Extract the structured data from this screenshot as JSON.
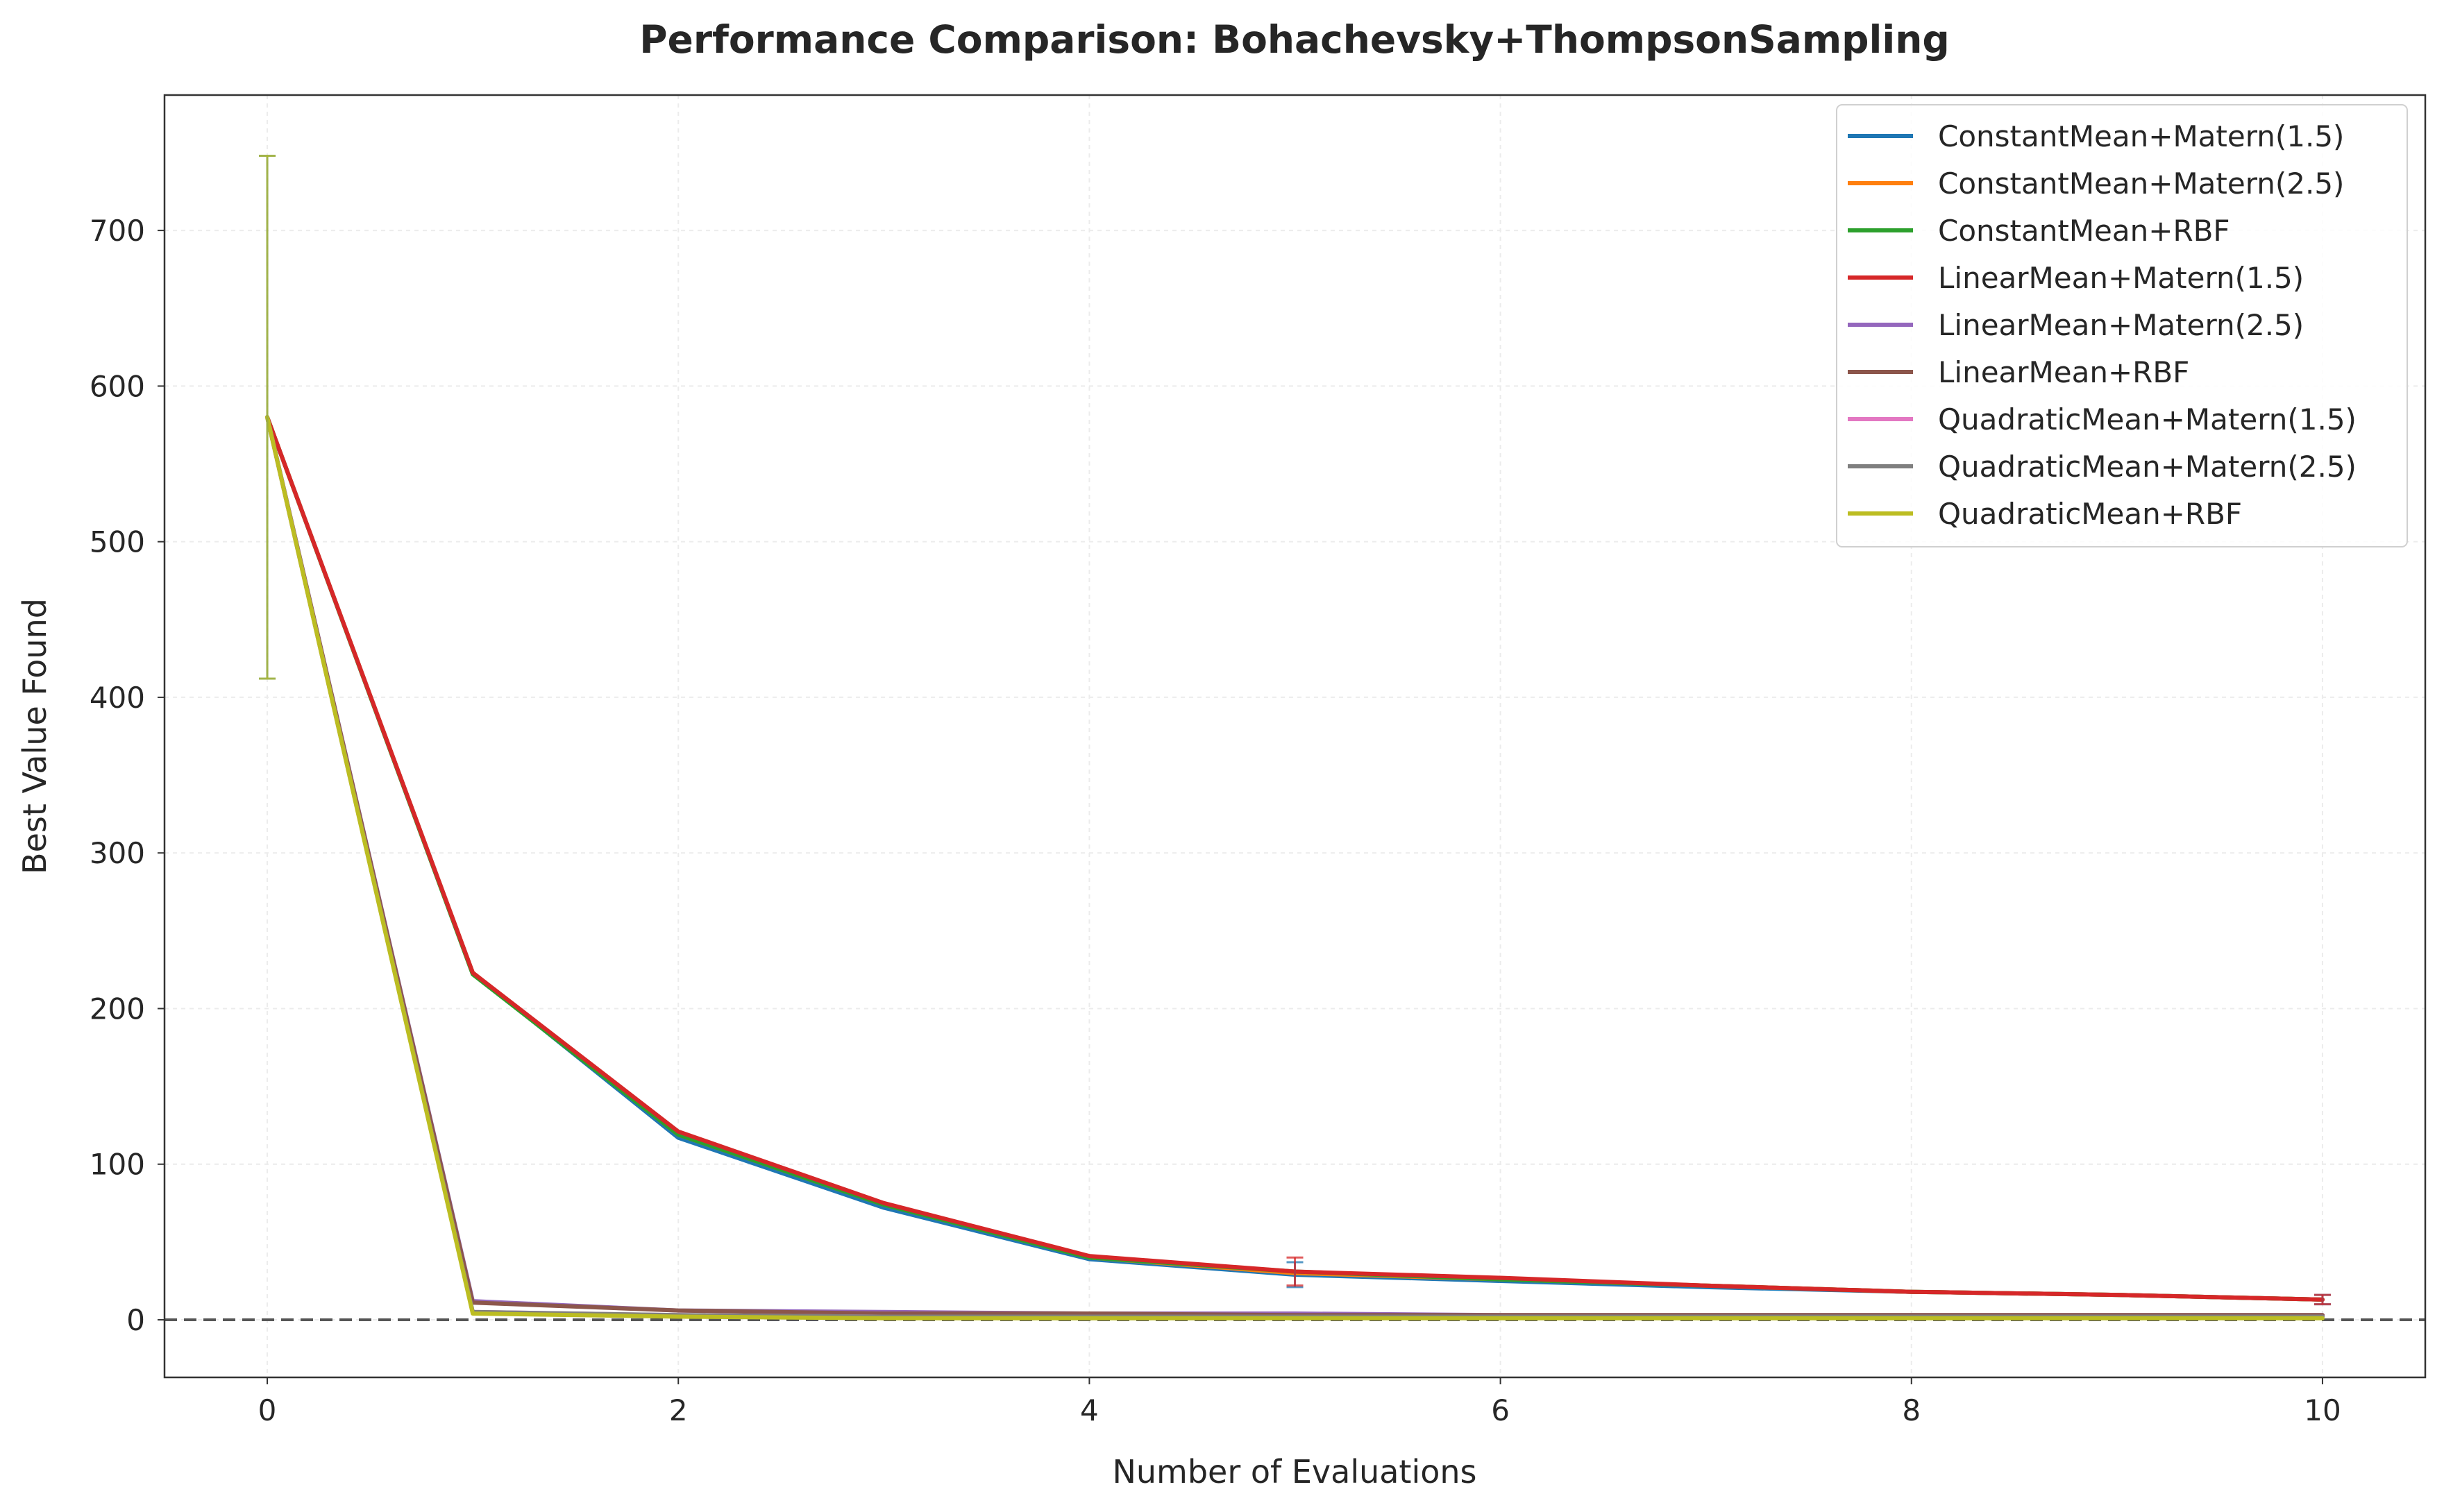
{
  "chart_data": {
    "type": "line",
    "title": "Performance Comparison: Bohachevsky+ThompsonSampling",
    "xlabel": "Number of Evaluations",
    "ylabel": "Best Value Found",
    "xlim": [
      -0.5,
      10.5
    ],
    "ylim": [
      -37,
      787
    ],
    "xticks": [
      0,
      2,
      4,
      6,
      8,
      10
    ],
    "yticks": [
      0,
      100,
      200,
      300,
      400,
      500,
      600,
      700
    ],
    "grid": true,
    "legend_position": "top-right",
    "reference_line": {
      "y": 0,
      "style": "dashed",
      "color": "#555555"
    },
    "x": [
      0,
      1,
      2,
      3,
      4,
      5,
      6,
      7,
      8,
      9,
      10
    ],
    "series": [
      {
        "name": "ConstantMean+Matern(1.5)",
        "color": "#1f77b4",
        "values": [
          580,
          223,
          117,
          72,
          39,
          29,
          25,
          21,
          18,
          16,
          13
        ],
        "errors": [
          {
            "x": 0,
            "err": 168
          },
          {
            "x": 5,
            "err": 8
          },
          {
            "x": 10,
            "err": 3
          }
        ]
      },
      {
        "name": "ConstantMean+Matern(2.5)",
        "color": "#ff7f0e",
        "values": [
          580,
          223,
          119,
          74,
          40,
          30,
          26,
          22,
          18,
          16,
          13
        ],
        "errors": []
      },
      {
        "name": "ConstantMean+RBF",
        "color": "#2ca02c",
        "values": [
          580,
          222,
          119,
          74,
          40,
          31,
          26,
          22,
          18,
          16,
          13
        ],
        "errors": []
      },
      {
        "name": "LinearMean+Matern(1.5)",
        "color": "#d62728",
        "values": [
          580,
          223,
          121,
          75,
          41,
          31,
          27,
          22,
          18,
          16,
          13
        ],
        "errors": [
          {
            "x": 5,
            "err": 9
          },
          {
            "x": 10,
            "err": 3
          }
        ]
      },
      {
        "name": "LinearMean+Matern(2.5)",
        "color": "#9467bd",
        "values": [
          580,
          12,
          6,
          5,
          4,
          4,
          3,
          3,
          3,
          3,
          3
        ],
        "errors": []
      },
      {
        "name": "LinearMean+RBF",
        "color": "#8c564b",
        "values": [
          580,
          11,
          6,
          4,
          4,
          3,
          3,
          3,
          3,
          3,
          3
        ],
        "errors": []
      },
      {
        "name": "QuadraticMean+Matern(1.5)",
        "color": "#e377c2",
        "values": [
          580,
          5,
          3,
          2,
          2,
          2,
          2,
          2,
          2,
          2,
          2
        ],
        "errors": []
      },
      {
        "name": "QuadraticMean+Matern(2.5)",
        "color": "#7f7f7f",
        "values": [
          580,
          5,
          3,
          2,
          2,
          2,
          2,
          2,
          2,
          2,
          2
        ],
        "errors": []
      },
      {
        "name": "QuadraticMean+RBF",
        "color": "#bcbd22",
        "values": [
          580,
          4,
          2,
          1,
          1,
          1,
          1,
          1,
          1,
          1,
          1
        ],
        "errors": [
          {
            "x": 0,
            "err": 168
          }
        ]
      }
    ]
  }
}
